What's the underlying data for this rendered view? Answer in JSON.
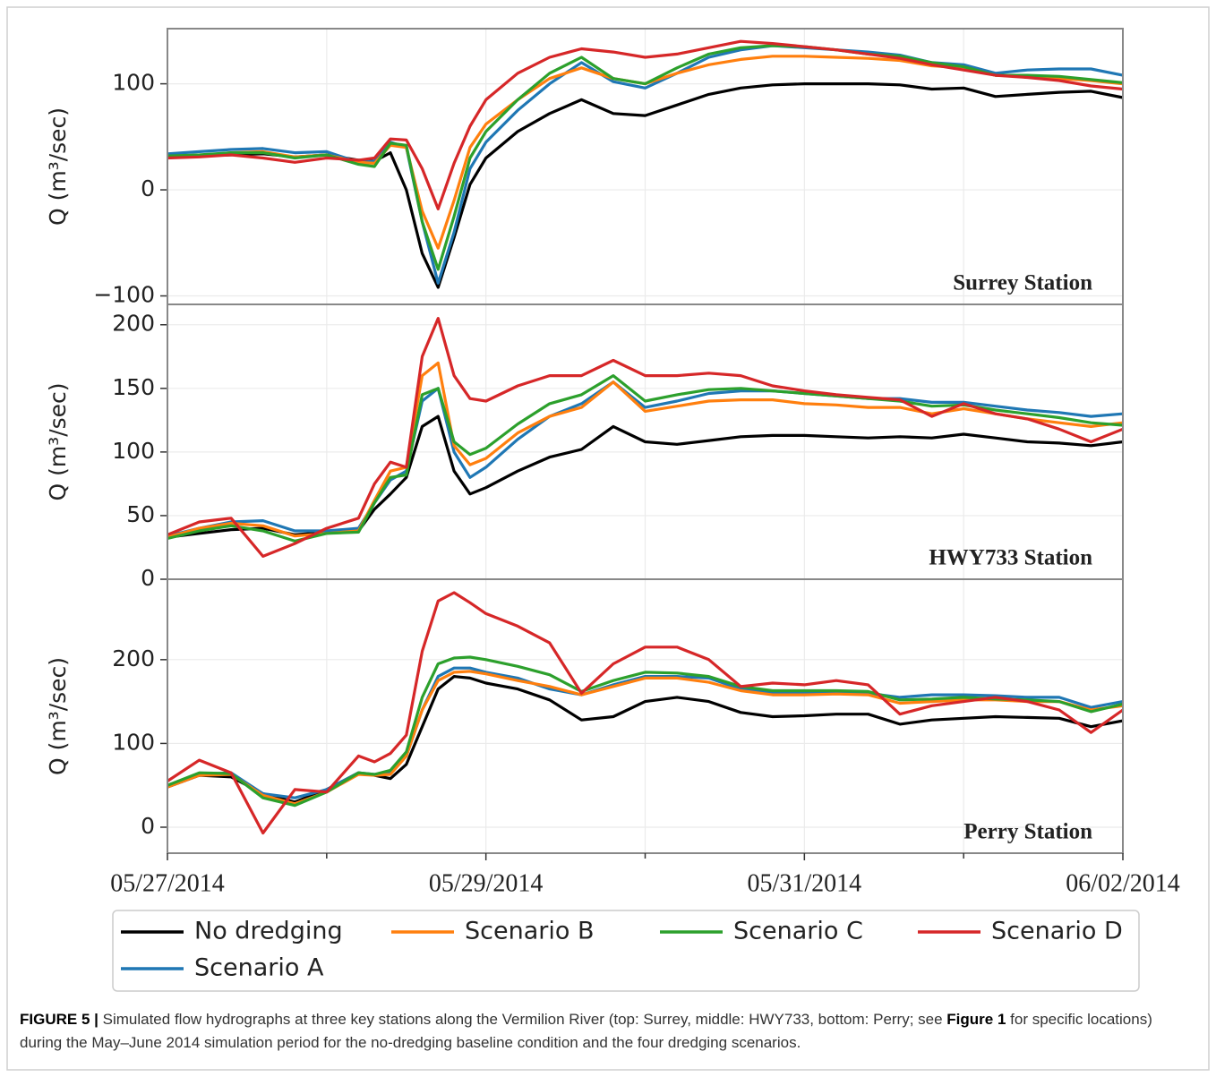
{
  "figure": {
    "caption_label": "FIGURE 5 |",
    "caption_text_1": "Simulated flow hydrographs at three key stations along the Vermilion River (top: Surrey, middle: HWY733, bottom: Perry; see ",
    "caption_ref": "Figure 1",
    "caption_text_2": " for specific locations) during the May–June 2014 simulation period for the no-dredging baseline condition and the four dredging scenarios."
  },
  "chart_data": [
    {
      "type": "line",
      "title": "Surrey Station",
      "ylabel": "Q (m³/sec)",
      "grid": true,
      "x": [
        0,
        0.2,
        0.4,
        0.6,
        0.8,
        1.0,
        1.2,
        1.3,
        1.4,
        1.5,
        1.6,
        1.7,
        1.8,
        1.9,
        2.0,
        2.2,
        2.4,
        2.6,
        2.8,
        3.0,
        3.2,
        3.4,
        3.6,
        3.8,
        4.0,
        4.2,
        4.4,
        4.6,
        4.8,
        5.0,
        5.2,
        5.4,
        5.6,
        5.8,
        6.0
      ],
      "xlim": [
        0,
        6
      ],
      "ylim": [
        -108,
        152
      ],
      "yticks": [
        {
          "value": -100,
          "label": "−100"
        },
        0,
        100
      ],
      "series": [
        {
          "color": "#000000",
          "values": [
            32,
            32,
            33,
            34,
            31,
            33,
            28,
            27,
            35,
            0,
            -60,
            -92,
            -45,
            5,
            30,
            55,
            72,
            85,
            72,
            70,
            80,
            90,
            96,
            99,
            100,
            100,
            100,
            99,
            95,
            96,
            88,
            90,
            92,
            93,
            87
          ]
        },
        {
          "color": "#1f77b4",
          "values": [
            34,
            36,
            38,
            39,
            35,
            36,
            26,
            27,
            45,
            40,
            -30,
            -88,
            -40,
            20,
            45,
            75,
            100,
            120,
            102,
            96,
            110,
            125,
            132,
            136,
            134,
            132,
            130,
            127,
            120,
            118,
            110,
            113,
            114,
            114,
            108
          ]
        },
        {
          "color": "#ff7f0e",
          "values": [
            31,
            32,
            35,
            36,
            31,
            33,
            26,
            25,
            42,
            40,
            -20,
            -55,
            -10,
            40,
            62,
            85,
            105,
            115,
            105,
            100,
            110,
            118,
            123,
            126,
            126,
            125,
            124,
            122,
            117,
            115,
            108,
            107,
            105,
            103,
            100
          ]
        },
        {
          "color": "#2ca02c",
          "values": [
            32,
            33,
            35,
            35,
            30,
            33,
            24,
            22,
            44,
            42,
            -30,
            -75,
            -25,
            30,
            55,
            85,
            110,
            125,
            105,
            100,
            115,
            128,
            134,
            136,
            135,
            132,
            128,
            126,
            120,
            116,
            108,
            108,
            107,
            104,
            101
          ]
        },
        {
          "color": "#d62728",
          "values": [
            30,
            31,
            33,
            30,
            26,
            30,
            28,
            30,
            48,
            47,
            20,
            -18,
            25,
            60,
            85,
            110,
            125,
            133,
            130,
            125,
            128,
            134,
            140,
            138,
            135,
            132,
            128,
            124,
            118,
            113,
            108,
            106,
            103,
            98,
            95
          ]
        }
      ]
    },
    {
      "type": "line",
      "title": "HWY733 Station",
      "ylabel": "Q (m³/sec)",
      "grid": true,
      "x": [
        0,
        0.2,
        0.4,
        0.6,
        0.8,
        1.0,
        1.2,
        1.3,
        1.4,
        1.5,
        1.6,
        1.7,
        1.8,
        1.9,
        2.0,
        2.2,
        2.4,
        2.6,
        2.8,
        3.0,
        3.2,
        3.4,
        3.6,
        3.8,
        4.0,
        4.2,
        4.4,
        4.6,
        4.8,
        5.0,
        5.2,
        5.4,
        5.6,
        5.8,
        6.0
      ],
      "xlim": [
        0,
        6
      ],
      "ylim": [
        0,
        216
      ],
      "yticks": [
        0,
        50,
        100,
        150,
        200
      ],
      "series": [
        {
          "color": "#000000",
          "values": [
            33,
            36,
            39,
            40,
            35,
            37,
            38,
            55,
            67,
            80,
            120,
            128,
            85,
            67,
            72,
            85,
            96,
            102,
            120,
            108,
            106,
            109,
            112,
            113,
            113,
            112,
            111,
            112,
            111,
            114,
            111,
            108,
            107,
            105,
            108
          ]
        },
        {
          "color": "#1f77b4",
          "values": [
            34,
            40,
            45,
            46,
            38,
            38,
            40,
            60,
            78,
            85,
            140,
            150,
            100,
            80,
            88,
            110,
            128,
            138,
            155,
            135,
            140,
            146,
            148,
            148,
            146,
            144,
            142,
            142,
            139,
            139,
            136,
            133,
            131,
            128,
            130
          ]
        },
        {
          "color": "#ff7f0e",
          "values": [
            33,
            40,
            44,
            42,
            34,
            36,
            38,
            62,
            85,
            88,
            160,
            170,
            105,
            90,
            95,
            115,
            128,
            135,
            155,
            132,
            136,
            140,
            141,
            141,
            138,
            137,
            135,
            135,
            130,
            134,
            130,
            126,
            123,
            120,
            123
          ]
        },
        {
          "color": "#2ca02c",
          "values": [
            32,
            38,
            42,
            38,
            30,
            36,
            37,
            60,
            80,
            82,
            145,
            150,
            108,
            98,
            103,
            122,
            138,
            145,
            160,
            140,
            145,
            149,
            150,
            148,
            146,
            144,
            142,
            140,
            136,
            137,
            133,
            130,
            127,
            123,
            121
          ]
        },
        {
          "color": "#d62728",
          "values": [
            35,
            45,
            48,
            18,
            28,
            40,
            48,
            75,
            92,
            88,
            175,
            205,
            160,
            142,
            140,
            152,
            160,
            160,
            172,
            160,
            160,
            162,
            160,
            152,
            148,
            145,
            143,
            141,
            128,
            138,
            130,
            126,
            118,
            108,
            118
          ]
        }
      ]
    },
    {
      "type": "line",
      "title": "Perry Station",
      "ylabel": "Q (m³/sec)",
      "grid": true,
      "x": [
        0,
        0.2,
        0.4,
        0.6,
        0.8,
        1.0,
        1.2,
        1.3,
        1.4,
        1.5,
        1.6,
        1.7,
        1.8,
        1.9,
        2.0,
        2.2,
        2.4,
        2.6,
        2.8,
        3.0,
        3.2,
        3.4,
        3.6,
        3.8,
        4.0,
        4.2,
        4.4,
        4.6,
        4.8,
        5.0,
        5.2,
        5.4,
        5.6,
        5.8,
        6.0
      ],
      "xlim": [
        0,
        6
      ],
      "ylim": [
        -31,
        296
      ],
      "yticks": [
        0,
        100,
        200
      ],
      "xticks": [
        {
          "value": 0,
          "label": "05/27/2014"
        },
        {
          "value": 2,
          "label": "05/29/2014"
        },
        {
          "value": 4,
          "label": "05/31/2014"
        },
        {
          "value": 6,
          "label": "06/02/2014"
        }
      ],
      "xminorticks": [
        1,
        3,
        5
      ],
      "series": [
        {
          "name": "No dredging",
          "color": "#000000",
          "values": [
            48,
            62,
            60,
            40,
            30,
            45,
            65,
            62,
            58,
            75,
            120,
            165,
            180,
            178,
            172,
            165,
            152,
            128,
            132,
            150,
            155,
            150,
            137,
            132,
            133,
            135,
            135,
            123,
            128,
            130,
            132,
            131,
            130,
            120,
            127
          ]
        },
        {
          "name": "Scenario A",
          "color": "#1f77b4",
          "values": [
            50,
            63,
            65,
            40,
            35,
            45,
            65,
            63,
            65,
            85,
            140,
            180,
            190,
            190,
            185,
            178,
            165,
            158,
            170,
            180,
            180,
            178,
            165,
            160,
            160,
            160,
            160,
            155,
            158,
            158,
            157,
            155,
            155,
            143,
            150
          ]
        },
        {
          "name": "Scenario B",
          "color": "#ff7f0e",
          "values": [
            48,
            62,
            63,
            38,
            28,
            42,
            63,
            62,
            63,
            85,
            140,
            175,
            185,
            186,
            183,
            175,
            168,
            158,
            168,
            178,
            178,
            173,
            163,
            158,
            158,
            159,
            158,
            148,
            150,
            152,
            152,
            150,
            150,
            140,
            145
          ]
        },
        {
          "name": "Scenario C",
          "color": "#2ca02c",
          "values": [
            50,
            65,
            64,
            35,
            26,
            42,
            65,
            63,
            68,
            90,
            155,
            195,
            202,
            203,
            200,
            192,
            182,
            162,
            175,
            185,
            184,
            180,
            168,
            163,
            163,
            163,
            162,
            152,
            153,
            155,
            153,
            152,
            150,
            138,
            147
          ]
        },
        {
          "name": "Scenario D",
          "color": "#d62728",
          "values": [
            55,
            80,
            65,
            -7,
            45,
            42,
            85,
            78,
            88,
            110,
            210,
            270,
            280,
            268,
            255,
            240,
            220,
            160,
            195,
            215,
            215,
            200,
            168,
            172,
            170,
            175,
            170,
            135,
            145,
            150,
            155,
            150,
            140,
            113,
            140
          ]
        }
      ]
    }
  ]
}
